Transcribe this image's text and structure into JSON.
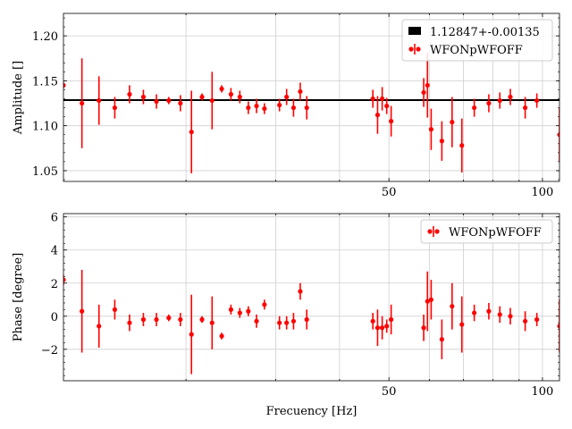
{
  "chart_data": [
    {
      "type": "scatter",
      "title": "",
      "xlabel": "",
      "ylabel": "Amplitude []",
      "xscale": "log",
      "xlim": [
        11.5,
        108
      ],
      "ylim": [
        1.038,
        1.225
      ],
      "xticks": [
        {
          "value": 50,
          "label": "50"
        },
        {
          "value": 100,
          "label": "100"
        }
      ],
      "yticks": [
        {
          "value": 1.05,
          "label": "1.05"
        },
        {
          "value": 1.1,
          "label": "1.10"
        },
        {
          "value": 1.15,
          "label": "1.15"
        },
        {
          "value": 1.2,
          "label": "1.20"
        }
      ],
      "grid": true,
      "legend_position": "top-right",
      "fit_line": {
        "label": "1.12847+-0.00135",
        "value": 1.12847,
        "color": "#000000"
      },
      "series": [
        {
          "name": "WFONpWFOFF",
          "color": "#ff0000",
          "x": [
            11.5,
            12.5,
            13.5,
            14.5,
            15.5,
            16.5,
            17.5,
            18.5,
            19.5,
            20.5,
            21.5,
            22.5,
            23.5,
            24.5,
            25.5,
            26.5,
            27.5,
            28.5,
            30.5,
            31.5,
            32.5,
            33.5,
            34.5,
            46.5,
            47.5,
            48.5,
            49.5,
            50.5,
            58.5,
            59.5,
            60.5,
            63.5,
            66.5,
            69.5,
            73.5,
            78.5,
            82.5,
            86.5,
            92.5,
            97.5,
            108
          ],
          "y": [
            1.145,
            1.125,
            1.128,
            1.12,
            1.135,
            1.132,
            1.127,
            1.128,
            1.125,
            1.093,
            1.132,
            1.128,
            1.141,
            1.135,
            1.132,
            1.12,
            1.122,
            1.119,
            1.123,
            1.132,
            1.12,
            1.138,
            1.12,
            1.13,
            1.112,
            1.13,
            1.122,
            1.105,
            1.137,
            1.145,
            1.096,
            1.083,
            1.104,
            1.078,
            1.12,
            1.125,
            1.128,
            1.132,
            1.12,
            1.128,
            1.09
          ],
          "yerr": [
            0.003,
            0.05,
            0.027,
            0.012,
            0.01,
            0.008,
            0.008,
            0.004,
            0.009,
            0.046,
            0.004,
            0.032,
            0.004,
            0.007,
            0.007,
            0.007,
            0.008,
            0.006,
            0.007,
            0.009,
            0.01,
            0.01,
            0.013,
            0.01,
            0.021,
            0.013,
            0.009,
            0.017,
            0.016,
            0.036,
            0.023,
            0.022,
            0.028,
            0.03,
            0.01,
            0.01,
            0.009,
            0.009,
            0.012,
            0.008,
            0.03
          ]
        }
      ]
    },
    {
      "type": "scatter",
      "title": "",
      "xlabel": "Frecuency [Hz]",
      "ylabel": "Phase [degree]",
      "xscale": "log",
      "xlim": [
        11.5,
        108
      ],
      "ylim": [
        -3.9,
        6.2
      ],
      "xticks": [
        {
          "value": 50,
          "label": "50"
        },
        {
          "value": 100,
          "label": "100"
        }
      ],
      "yticks": [
        {
          "value": -2,
          "label": "−2"
        },
        {
          "value": 0,
          "label": "0"
        },
        {
          "value": 2,
          "label": "2"
        },
        {
          "value": 4,
          "label": "4"
        },
        {
          "value": 6,
          "label": "6"
        }
      ],
      "grid": true,
      "legend_position": "top-right",
      "series": [
        {
          "name": "WFONpWFOFF",
          "color": "#ff0000",
          "x": [
            11.5,
            12.5,
            13.5,
            14.5,
            15.5,
            16.5,
            17.5,
            18.5,
            19.5,
            20.5,
            21.5,
            22.5,
            23.5,
            24.5,
            25.5,
            26.5,
            27.5,
            28.5,
            30.5,
            31.5,
            32.5,
            33.5,
            34.5,
            46.5,
            47.5,
            48.5,
            49.5,
            50.5,
            58.5,
            59.5,
            60.5,
            63.5,
            66.5,
            69.5,
            73.5,
            78.5,
            82.5,
            86.5,
            92.5,
            97.5,
            108
          ],
          "y": [
            2.2,
            0.3,
            -0.6,
            0.4,
            -0.4,
            -0.2,
            -0.2,
            -0.1,
            -0.2,
            -1.1,
            -0.2,
            -0.4,
            -1.2,
            0.4,
            0.2,
            0.3,
            -0.3,
            0.7,
            -0.4,
            -0.4,
            -0.3,
            1.5,
            -0.2,
            -0.3,
            -0.7,
            -0.7,
            -0.6,
            -0.2,
            -0.7,
            0.9,
            1.0,
            -1.4,
            0.6,
            -0.5,
            0.2,
            0.3,
            0.1,
            0.0,
            -0.3,
            -0.2,
            -0.6
          ],
          "yerr": [
            0.3,
            2.5,
            1.3,
            0.6,
            0.5,
            0.4,
            0.4,
            0.2,
            0.4,
            2.4,
            0.2,
            1.6,
            0.2,
            0.3,
            0.3,
            0.3,
            0.4,
            0.3,
            0.4,
            0.4,
            0.5,
            0.5,
            0.6,
            0.5,
            1.1,
            0.7,
            0.4,
            0.9,
            0.8,
            1.8,
            1.2,
            1.2,
            1.4,
            1.7,
            0.5,
            0.5,
            0.5,
            0.5,
            0.6,
            0.4,
            1.6
          ]
        }
      ]
    }
  ]
}
